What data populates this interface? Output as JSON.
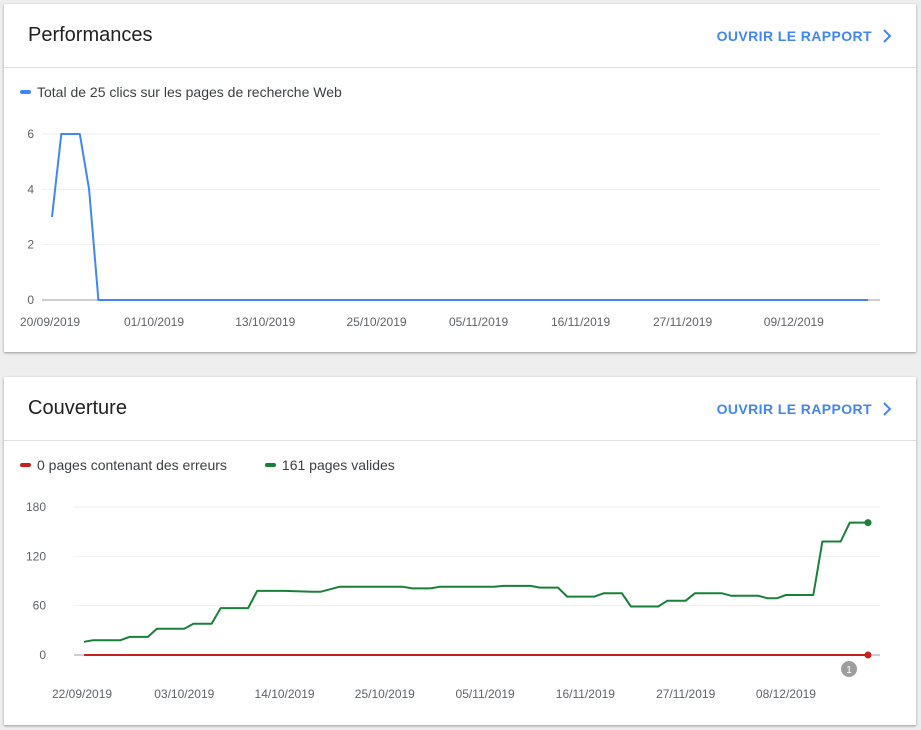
{
  "cards": {
    "performance": {
      "title": "Performances",
      "open_report": "OUVRIR LE RAPPORT",
      "legend": "Total de 25 clics sur les pages de recherche Web",
      "line_color": "#4285f4"
    },
    "coverage": {
      "title": "Couverture",
      "open_report": "OUVRIR LE RAPPORT",
      "legend_errors": "0 pages contenant des erreurs",
      "legend_valid": "161 pages valides",
      "error_color": "#c5221f",
      "valid_color": "#188038",
      "badge": "1"
    }
  },
  "chart_data": [
    {
      "type": "line",
      "series": [
        {
          "name": "Total de 25 clics sur les pages de recherche Web",
          "x": [
            "20/09/2019",
            "21/09/2019",
            "22/09/2019",
            "23/09/2019",
            "24/09/2019",
            "25/09/2019",
            "17/12/2019"
          ],
          "values": [
            3,
            6,
            6,
            6,
            4,
            0,
            0
          ]
        }
      ],
      "x_ticks": [
        "20/09/2019",
        "01/10/2019",
        "13/10/2019",
        "25/10/2019",
        "05/11/2019",
        "16/11/2019",
        "27/11/2019",
        "09/12/2019"
      ],
      "y_ticks": [
        0,
        2,
        4,
        6
      ],
      "ylim": [
        0,
        6
      ],
      "xlim": [
        "20/09/2019",
        "17/12/2019"
      ],
      "grid": true
    },
    {
      "type": "line",
      "series": [
        {
          "name": "0 pages contenant des erreurs",
          "x": [
            "22/09/2019",
            "17/12/2019"
          ],
          "values": [
            0,
            0
          ]
        },
        {
          "name": "161 pages valides",
          "x": [
            "22/09/2019",
            "23/09/2019",
            "26/09/2019",
            "27/09/2019",
            "29/09/2019",
            "30/09/2019",
            "03/10/2019",
            "04/10/2019",
            "06/10/2019",
            "07/10/2019",
            "10/10/2019",
            "11/10/2019",
            "14/10/2019",
            "17/10/2019",
            "18/10/2019",
            "20/10/2019",
            "21/10/2019",
            "27/10/2019",
            "28/10/2019",
            "30/10/2019",
            "31/10/2019",
            "06/11/2019",
            "07/11/2019",
            "10/11/2019",
            "11/11/2019",
            "13/11/2019",
            "14/11/2019",
            "17/11/2019",
            "18/11/2019",
            "20/11/2019",
            "21/11/2019",
            "24/11/2019",
            "25/11/2019",
            "27/11/2019",
            "28/11/2019",
            "01/12/2019",
            "02/12/2019",
            "05/12/2019",
            "06/12/2019",
            "07/12/2019",
            "08/12/2019",
            "11/12/2019",
            "12/12/2019",
            "14/12/2019",
            "15/12/2019",
            "17/12/2019"
          ],
          "values": [
            16,
            18,
            18,
            22,
            22,
            32,
            32,
            38,
            38,
            57,
            57,
            78,
            78,
            77,
            77,
            83,
            83,
            83,
            81,
            81,
            83,
            83,
            84,
            84,
            82,
            82,
            71,
            71,
            75,
            75,
            59,
            59,
            66,
            66,
            75,
            75,
            72,
            72,
            69,
            69,
            73,
            73,
            138,
            138,
            161,
            161
          ]
        }
      ],
      "x_ticks": [
        "22/09/2019",
        "03/10/2019",
        "14/10/2019",
        "25/10/2019",
        "05/11/2019",
        "16/11/2019",
        "27/11/2019",
        "08/12/2019"
      ],
      "y_ticks": [
        0,
        60,
        120,
        180
      ],
      "ylim": [
        0,
        180
      ],
      "xlim": [
        "22/09/2019",
        "17/12/2019"
      ],
      "grid": true
    }
  ]
}
